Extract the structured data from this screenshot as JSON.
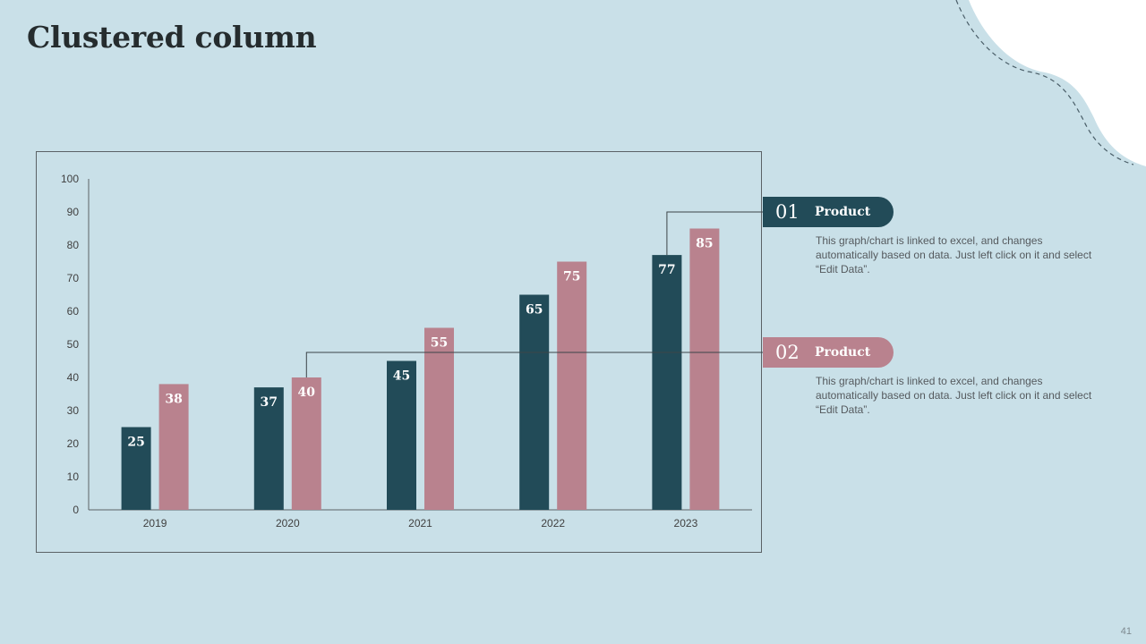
{
  "slide": {
    "title": "Clustered column",
    "page_number": "41"
  },
  "legend": [
    {
      "number": "01",
      "label": "Product",
      "color": "#224b58",
      "description": "This graph/chart is linked to excel, and changes automatically based on data. Just left click on it and select “Edit Data”."
    },
    {
      "number": "02",
      "label": "Product",
      "color": "#b9828e",
      "description": "This graph/chart is linked to excel, and changes automatically based on data. Just left click on it and select “Edit Data”."
    }
  ],
  "chart_data": {
    "type": "bar",
    "title": "",
    "xlabel": "",
    "ylabel": "",
    "categories": [
      "2019",
      "2020",
      "2021",
      "2022",
      "2023"
    ],
    "series": [
      {
        "name": "Product 01",
        "color": "#224b58",
        "values": [
          25,
          37,
          45,
          65,
          77
        ]
      },
      {
        "name": "Product 02",
        "color": "#b9828e",
        "values": [
          38,
          40,
          55,
          75,
          85
        ]
      }
    ],
    "ylim": [
      0,
      100
    ],
    "yticks": [
      0,
      10,
      20,
      30,
      40,
      50,
      60,
      70,
      80,
      90,
      100
    ],
    "grid": false,
    "show_data_labels": true
  }
}
